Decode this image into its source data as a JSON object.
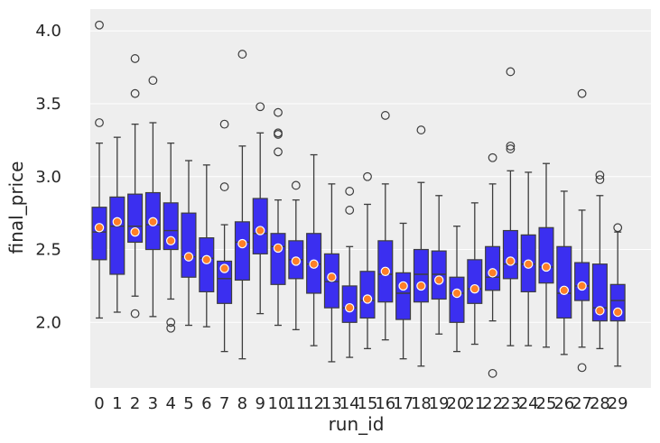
{
  "chart_data": {
    "type": "box",
    "title": "",
    "xlabel": "run_id",
    "ylabel": "final_price",
    "ylim": [
      1.55,
      4.15
    ],
    "yticks": [
      "2.0",
      "2.5",
      "3.0",
      "3.5",
      "4.0"
    ],
    "ytick_values": [
      2.0,
      2.5,
      3.0,
      3.5,
      4.0
    ],
    "grid": true,
    "box_color": "#3b2ff0",
    "mean_color": "#ff7f27",
    "background_color": "#eeeeee",
    "categories": [
      "0",
      "1",
      "2",
      "3",
      "4",
      "5",
      "6",
      "7",
      "8",
      "9",
      "10",
      "11",
      "12",
      "13",
      "14",
      "15",
      "16",
      "17",
      "18",
      "19",
      "20",
      "21",
      "22",
      "23",
      "24",
      "25",
      "26",
      "27",
      "28",
      "29"
    ],
    "boxes": [
      {
        "run_id": "0",
        "whislo": 2.03,
        "q1": 2.43,
        "med": 2.62,
        "q3": 2.79,
        "whishi": 3.23,
        "mean": 2.65,
        "fliers": [
          4.04,
          3.37
        ]
      },
      {
        "run_id": "1",
        "whislo": 2.07,
        "q1": 2.33,
        "med": 2.66,
        "q3": 2.86,
        "whishi": 3.27,
        "mean": 2.69,
        "fliers": []
      },
      {
        "run_id": "2",
        "whislo": 2.18,
        "q1": 2.55,
        "med": 2.66,
        "q3": 2.88,
        "whishi": 3.36,
        "mean": 2.62,
        "fliers": [
          3.81,
          3.57,
          2.06
        ]
      },
      {
        "run_id": "3",
        "whislo": 2.04,
        "q1": 2.5,
        "med": 2.67,
        "q3": 2.89,
        "whishi": 3.37,
        "mean": 2.69,
        "fliers": [
          3.66
        ]
      },
      {
        "run_id": "4",
        "whislo": 2.16,
        "q1": 2.5,
        "med": 2.63,
        "q3": 2.82,
        "whishi": 3.23,
        "mean": 2.56,
        "fliers": [
          2.0,
          1.96
        ]
      },
      {
        "run_id": "5",
        "whislo": 1.98,
        "q1": 2.31,
        "med": 2.45,
        "q3": 2.75,
        "whishi": 3.11,
        "mean": 2.45,
        "fliers": []
      },
      {
        "run_id": "6",
        "whislo": 1.97,
        "q1": 2.21,
        "med": 2.44,
        "q3": 2.58,
        "whishi": 3.08,
        "mean": 2.43,
        "fliers": []
      },
      {
        "run_id": "7",
        "whislo": 1.8,
        "q1": 2.13,
        "med": 2.3,
        "q3": 2.42,
        "whishi": 2.67,
        "mean": 2.37,
        "fliers": [
          3.36,
          2.93
        ]
      },
      {
        "run_id": "8",
        "whislo": 1.75,
        "q1": 2.29,
        "med": 2.55,
        "q3": 2.69,
        "whishi": 3.21,
        "mean": 2.54,
        "fliers": [
          3.84
        ]
      },
      {
        "run_id": "9",
        "whislo": 2.06,
        "q1": 2.47,
        "med": 2.61,
        "q3": 2.85,
        "whishi": 3.3,
        "mean": 2.63,
        "fliers": [
          3.48
        ]
      },
      {
        "run_id": "10",
        "whislo": 1.98,
        "q1": 2.26,
        "med": 2.52,
        "q3": 2.61,
        "whishi": 2.84,
        "mean": 2.51,
        "fliers": [
          3.44,
          3.3,
          3.29,
          3.17
        ]
      },
      {
        "run_id": "11",
        "whislo": 1.95,
        "q1": 2.3,
        "med": 2.43,
        "q3": 2.56,
        "whishi": 2.84,
        "mean": 2.42,
        "fliers": [
          2.94
        ]
      },
      {
        "run_id": "12",
        "whislo": 1.84,
        "q1": 2.2,
        "med": 2.4,
        "q3": 2.61,
        "whishi": 3.15,
        "mean": 2.4,
        "fliers": []
      },
      {
        "run_id": "13",
        "whislo": 1.73,
        "q1": 2.1,
        "med": 2.28,
        "q3": 2.47,
        "whishi": 2.95,
        "mean": 2.31,
        "fliers": []
      },
      {
        "run_id": "14",
        "whislo": 1.76,
        "q1": 2.0,
        "med": 2.1,
        "q3": 2.25,
        "whishi": 2.52,
        "mean": 2.1,
        "fliers": [
          2.9,
          2.77
        ]
      },
      {
        "run_id": "15",
        "whislo": 1.82,
        "q1": 2.03,
        "med": 2.15,
        "q3": 2.35,
        "whishi": 2.81,
        "mean": 2.16,
        "fliers": [
          3.0
        ]
      },
      {
        "run_id": "16",
        "whislo": 1.88,
        "q1": 2.14,
        "med": 2.33,
        "q3": 2.56,
        "whishi": 2.95,
        "mean": 2.35,
        "fliers": [
          3.42
        ]
      },
      {
        "run_id": "17",
        "whislo": 1.75,
        "q1": 2.02,
        "med": 2.2,
        "q3": 2.34,
        "whishi": 2.68,
        "mean": 2.25,
        "fliers": []
      },
      {
        "run_id": "18",
        "whislo": 1.7,
        "q1": 2.14,
        "med": 2.33,
        "q3": 2.5,
        "whishi": 2.96,
        "mean": 2.25,
        "fliers": [
          3.32
        ]
      },
      {
        "run_id": "19",
        "whislo": 1.92,
        "q1": 2.16,
        "med": 2.33,
        "q3": 2.49,
        "whishi": 2.87,
        "mean": 2.29,
        "fliers": []
      },
      {
        "run_id": "20",
        "whislo": 1.8,
        "q1": 2.0,
        "med": 2.2,
        "q3": 2.31,
        "whishi": 2.66,
        "mean": 2.2,
        "fliers": []
      },
      {
        "run_id": "21",
        "whislo": 1.85,
        "q1": 2.13,
        "med": 2.23,
        "q3": 2.43,
        "whishi": 2.82,
        "mean": 2.23,
        "fliers": []
      },
      {
        "run_id": "22",
        "whislo": 2.01,
        "q1": 2.22,
        "med": 2.31,
        "q3": 2.52,
        "whishi": 2.95,
        "mean": 2.34,
        "fliers": [
          3.13,
          1.65
        ]
      },
      {
        "run_id": "23",
        "whislo": 1.84,
        "q1": 2.3,
        "med": 2.4,
        "q3": 2.63,
        "whishi": 3.04,
        "mean": 2.42,
        "fliers": [
          3.72,
          3.21,
          3.19
        ]
      },
      {
        "run_id": "24",
        "whislo": 1.84,
        "q1": 2.21,
        "med": 2.4,
        "q3": 2.6,
        "whishi": 3.03,
        "mean": 2.4,
        "fliers": []
      },
      {
        "run_id": "25",
        "whislo": 1.83,
        "q1": 2.27,
        "med": 2.38,
        "q3": 2.65,
        "whishi": 3.09,
        "mean": 2.38,
        "fliers": []
      },
      {
        "run_id": "26",
        "whislo": 1.78,
        "q1": 2.03,
        "med": 2.2,
        "q3": 2.52,
        "whishi": 2.9,
        "mean": 2.22,
        "fliers": []
      },
      {
        "run_id": "27",
        "whislo": 1.83,
        "q1": 2.15,
        "med": 2.25,
        "q3": 2.41,
        "whishi": 2.77,
        "mean": 2.25,
        "fliers": [
          3.57,
          1.69
        ]
      },
      {
        "run_id": "28",
        "whislo": 1.82,
        "q1": 2.01,
        "med": 2.1,
        "q3": 2.4,
        "whishi": 2.87,
        "mean": 2.08,
        "fliers": [
          3.01,
          2.98
        ]
      },
      {
        "run_id": "29",
        "whislo": 1.7,
        "q1": 2.01,
        "med": 2.15,
        "q3": 2.26,
        "whishi": 2.62,
        "mean": 2.07,
        "fliers": [
          2.65
        ]
      }
    ]
  }
}
